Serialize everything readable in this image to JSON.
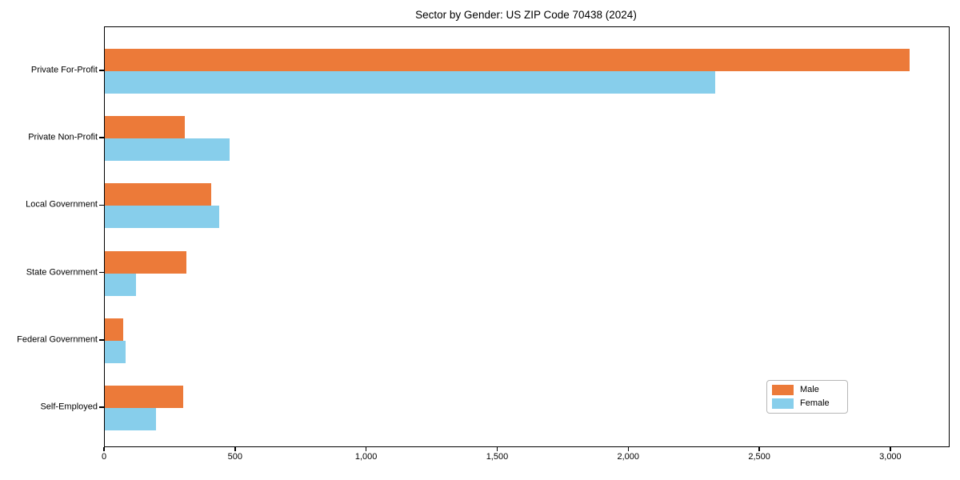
{
  "chart_data": {
    "type": "bar",
    "orientation": "horizontal",
    "title": "Sector by Gender: US ZIP Code 70438 (2024)",
    "categories": [
      "Private For-Profit",
      "Private Non-Profit",
      "Local Government",
      "State Government",
      "Federal Government",
      "Self-Employed"
    ],
    "series": [
      {
        "name": "Male",
        "color": "#ec7a39",
        "values": [
          3070,
          305,
          405,
          310,
          70,
          300
        ]
      },
      {
        "name": "Female",
        "color": "#87ceeb",
        "values": [
          2330,
          475,
          435,
          120,
          78,
          195
        ]
      }
    ],
    "xlabel": "",
    "ylabel": "",
    "xlim": [
      0,
      3220
    ],
    "xticks": [
      0,
      500,
      1000,
      1500,
      2000,
      2500,
      3000
    ],
    "xtick_labels": [
      "0",
      "500",
      "1,000",
      "1,500",
      "2,000",
      "2,500",
      "3,000"
    ],
    "grid": false,
    "legend_position": "lower right",
    "background_color": "#ffffff",
    "text_color": "#000000"
  }
}
